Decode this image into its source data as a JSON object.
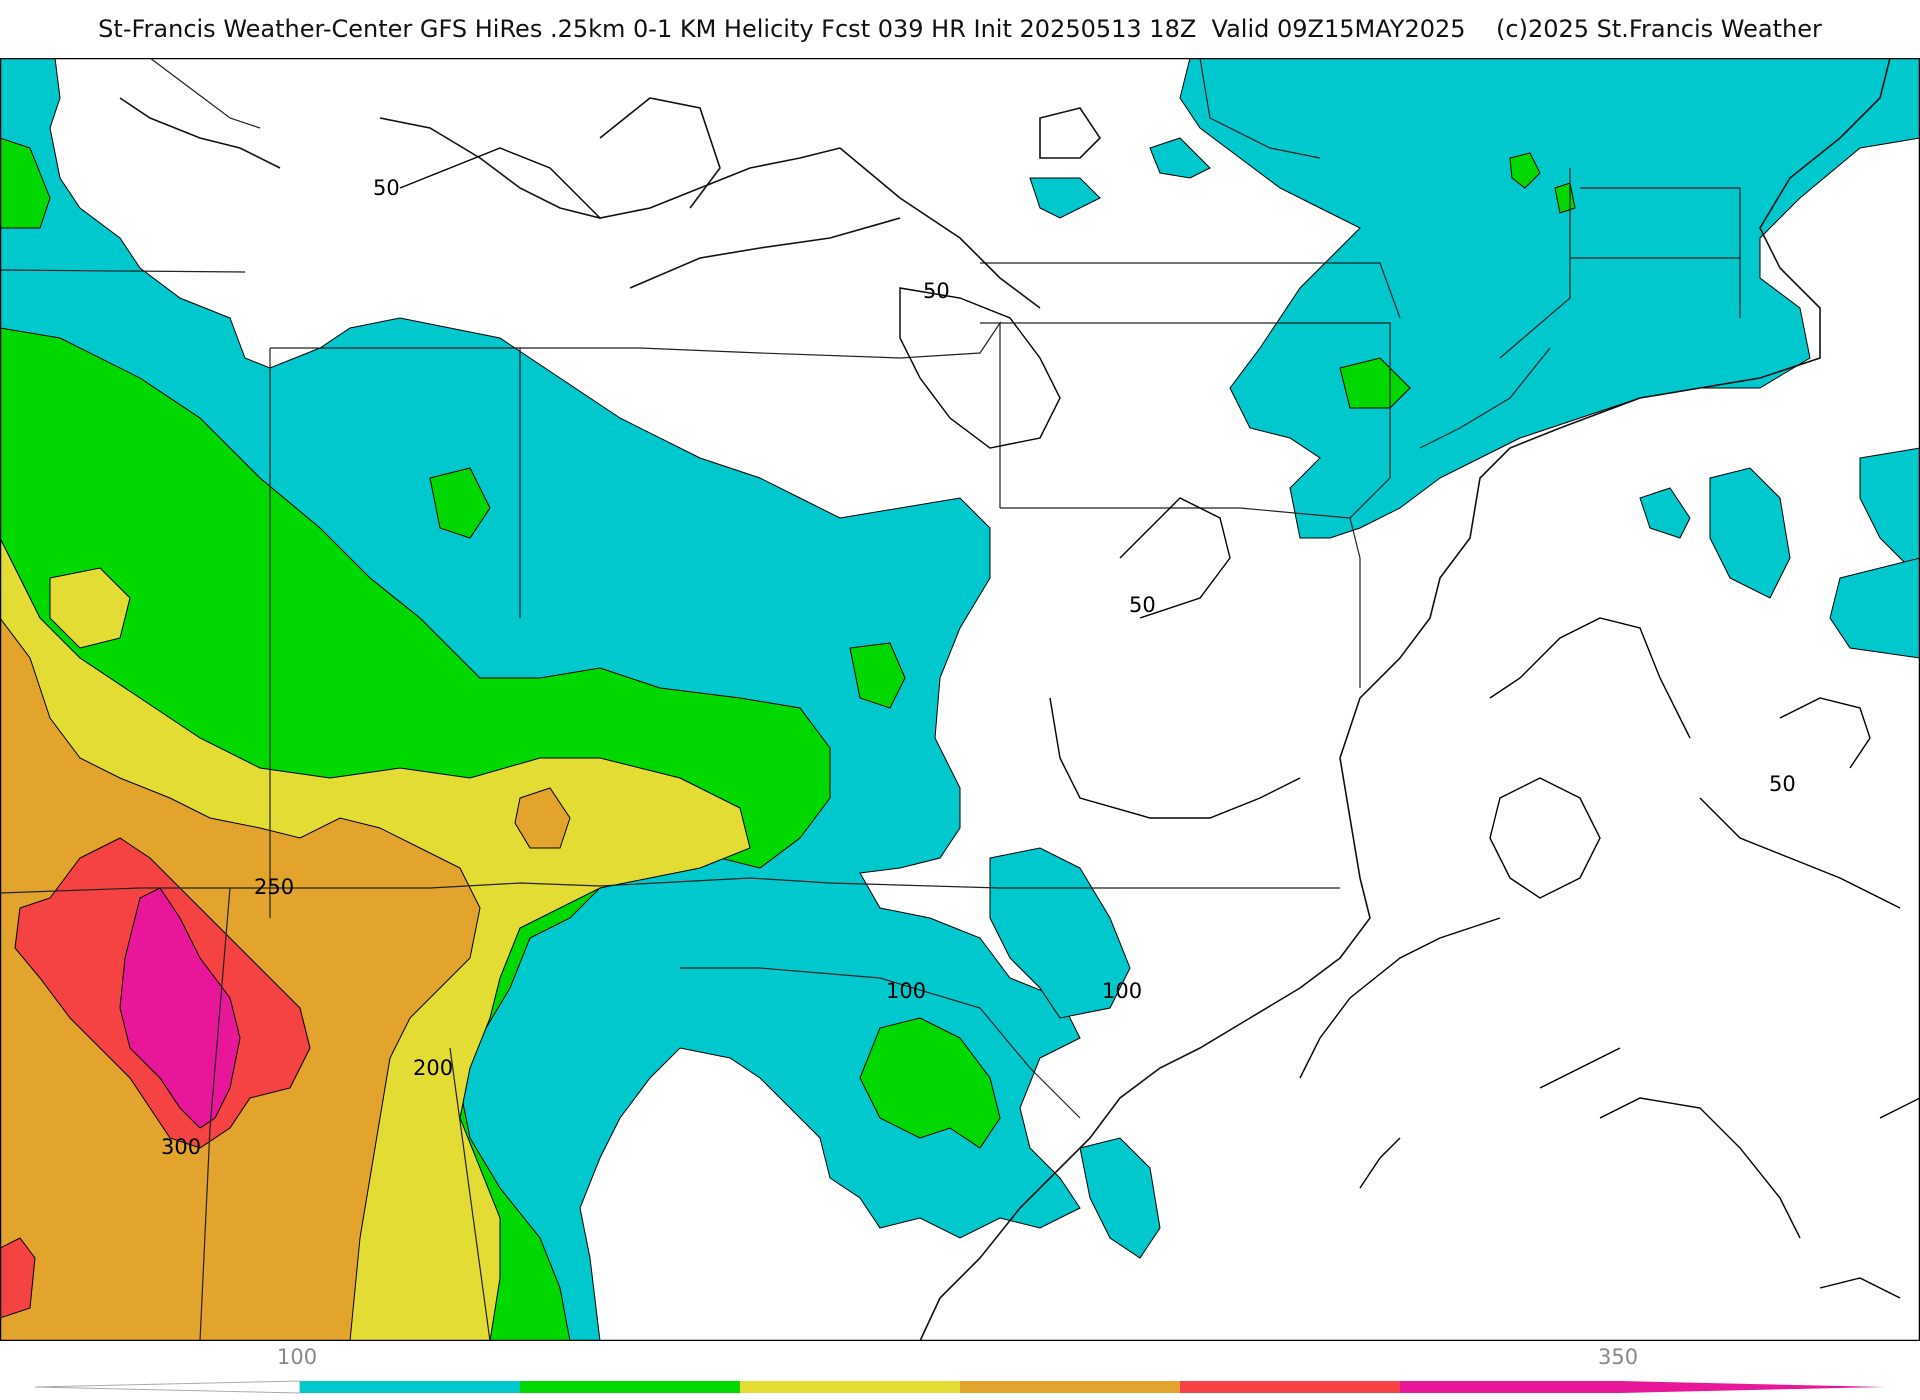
{
  "header": {
    "title_left": "St-Francis Weather-Center GFS HiRes .25km 0-1 KM Helicity Fcst 039 HR Init 20250513 18Z  Valid 09Z15MAY2025",
    "copyright": "(c)2025 St.Francis Weather"
  },
  "map": {
    "contour_labels": {
      "c50_a": "50",
      "c50_b": "50",
      "c50_c": "50",
      "c50_d": "50",
      "c100_a": "100",
      "c100_b": "100",
      "c200": "200",
      "c250": "250",
      "c300": "300"
    },
    "fill_colors": {
      "land_bg": "#ffffff",
      "level_50": "#00c8cc",
      "level_100": "#00d800",
      "level_150": "#e3dc34",
      "level_200": "#e3a42e",
      "level_250": "#f54242",
      "level_300": "#e8179a"
    }
  },
  "colorbar": {
    "tick_100": "100",
    "tick_350": "350",
    "segments": [
      "#00c8cc",
      "#00d800",
      "#e3dc34",
      "#e3a42e",
      "#f54242",
      "#e8179a"
    ]
  }
}
